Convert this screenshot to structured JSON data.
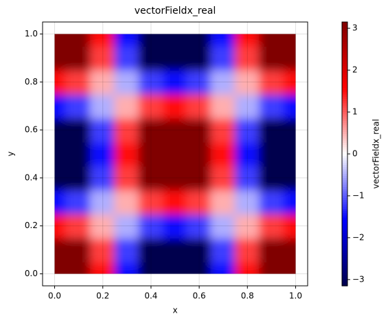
{
  "chart_data": {
    "type": "heatmap",
    "title": "vectorFieldx_real",
    "xlabel": "x",
    "ylabel": "y",
    "colorbar_label": "vectorFieldx_real",
    "colormap": "seismic",
    "grid": true,
    "x": [
      0,
      0.1,
      0.2,
      0.3,
      0.4,
      0.5,
      0.6,
      0.7,
      0.8,
      0.9,
      1
    ],
    "y": [
      0,
      0.1,
      0.2,
      0.3,
      0.4,
      0.5,
      0.6,
      0.7,
      0.8,
      0.9,
      1
    ],
    "z": [
      [
        3.2,
        3.2,
        1.5,
        -1.5,
        -3.2,
        -3.2,
        -3.2,
        -1.5,
        1.5,
        3.2,
        3.2
      ],
      [
        3.2,
        3.2,
        1.2,
        -1.2,
        -3.2,
        -3.2,
        -3.2,
        -1.2,
        1.2,
        3.2,
        3.2
      ],
      [
        1.5,
        1.2,
        0.5,
        -0.5,
        -1.2,
        -1.5,
        -1.2,
        -0.5,
        0.5,
        1.2,
        1.5
      ],
      [
        -1.5,
        -1.2,
        -0.5,
        0.5,
        1.2,
        1.5,
        1.2,
        0.5,
        -0.5,
        -1.2,
        -1.5
      ],
      [
        -3.2,
        -3.2,
        -1.2,
        1.2,
        3.2,
        3.2,
        3.2,
        1.2,
        -1.2,
        -3.2,
        -3.2
      ],
      [
        -3.2,
        -3.2,
        -1.5,
        1.5,
        3.2,
        3.2,
        3.2,
        1.5,
        -1.5,
        -3.2,
        -3.2
      ],
      [
        -3.2,
        -3.2,
        -1.2,
        1.2,
        3.2,
        3.2,
        3.2,
        1.2,
        -1.2,
        -3.2,
        -3.2
      ],
      [
        -1.5,
        -1.2,
        -0.5,
        0.5,
        1.2,
        1.5,
        1.2,
        0.5,
        -0.5,
        -1.2,
        -1.5
      ],
      [
        1.5,
        1.2,
        0.5,
        -0.5,
        -1.2,
        -1.5,
        -1.2,
        -0.5,
        0.5,
        1.2,
        1.5
      ],
      [
        3.2,
        3.2,
        1.2,
        -1.2,
        -3.2,
        -3.2,
        -3.2,
        -1.2,
        1.2,
        3.2,
        3.2
      ],
      [
        3.2,
        3.2,
        1.5,
        -1.5,
        -3.2,
        -3.2,
        -3.2,
        -1.5,
        1.5,
        3.2,
        3.2
      ]
    ],
    "xlim": [
      -0.05,
      1.05
    ],
    "ylim": [
      -0.05,
      1.05
    ],
    "clim": [
      -3.15,
      3.15
    ],
    "xticks": [
      {
        "value": 0,
        "label": "0.0"
      },
      {
        "value": 0.2,
        "label": "0.2"
      },
      {
        "value": 0.4,
        "label": "0.4"
      },
      {
        "value": 0.6,
        "label": "0.6"
      },
      {
        "value": 0.8,
        "label": "0.8"
      },
      {
        "value": 1,
        "label": "1.0"
      }
    ],
    "yticks": [
      {
        "value": 0,
        "label": "0.0"
      },
      {
        "value": 0.2,
        "label": "0.2"
      },
      {
        "value": 0.4,
        "label": "0.4"
      },
      {
        "value": 0.6,
        "label": "0.6"
      },
      {
        "value": 0.8,
        "label": "0.8"
      },
      {
        "value": 1,
        "label": "1.0"
      }
    ],
    "cticks": [
      {
        "value": -3,
        "label": "−3"
      },
      {
        "value": -2,
        "label": "−2"
      },
      {
        "value": -1,
        "label": "−1"
      },
      0,
      1,
      2,
      3
    ]
  }
}
